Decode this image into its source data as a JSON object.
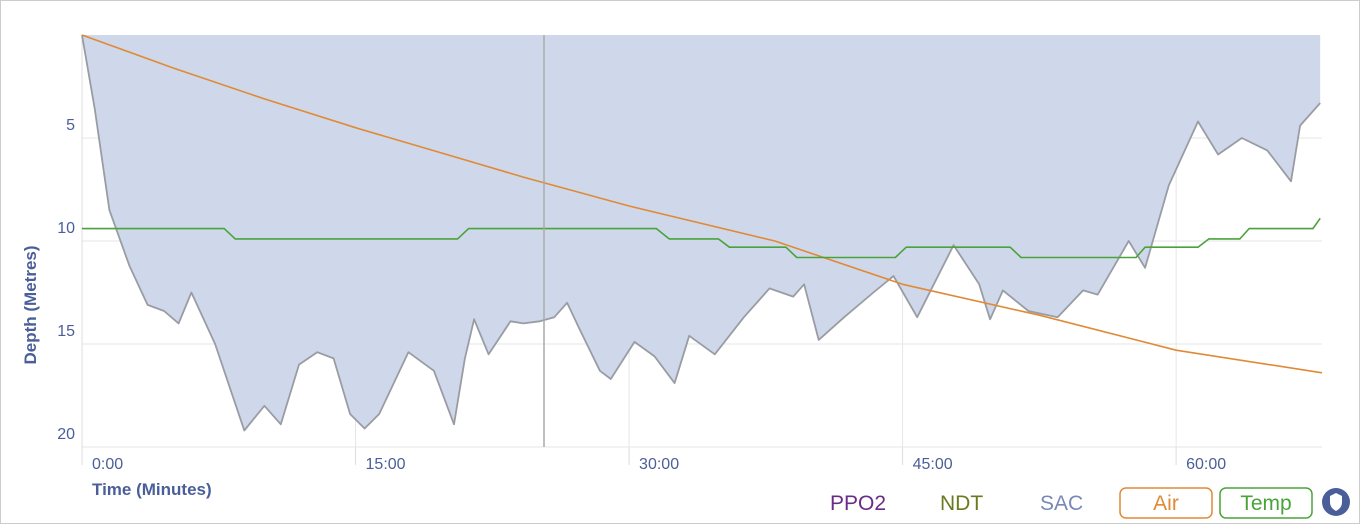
{
  "chart_data": {
    "type": "line",
    "xlabel": "Time (Minutes)",
    "ylabel": "Depth (Metres)",
    "xlim": [
      0,
      68
    ],
    "ylim": [
      0,
      20
    ],
    "y_reversed": true,
    "grid": true,
    "xticks": [
      {
        "value": 0,
        "label": "0:00"
      },
      {
        "value": 15,
        "label": "15:00"
      },
      {
        "value": 30,
        "label": "30:00"
      },
      {
        "value": 45,
        "label": "45:00"
      },
      {
        "value": 60,
        "label": "60:00"
      }
    ],
    "yticks": [
      5,
      10,
      15,
      20
    ],
    "series": [
      {
        "name": "Depth",
        "color": "#9a9ca4",
        "fill": "#ced8ea",
        "x": [
          0,
          0.7,
          1.5,
          2.6,
          3.6,
          4.5,
          5.3,
          6.0,
          7.3,
          8.9,
          10.0,
          10.9,
          11.9,
          12.9,
          13.8,
          14.7,
          15.5,
          16.3,
          17.9,
          19.3,
          20.4,
          21.0,
          21.5,
          22.3,
          23.5,
          24.2,
          25.1,
          25.9,
          26.6,
          27.3,
          28.4,
          29.0,
          30.3,
          31.4,
          32.5,
          33.3,
          34.7,
          36.3,
          37.7,
          39.0,
          39.6,
          40.4,
          41.8,
          43.4,
          44.5,
          45.8,
          47.8,
          49.2,
          49.8,
          50.5,
          51.9,
          53.5,
          54.9,
          55.7,
          57.4,
          58.3,
          59.6,
          61.2,
          62.3,
          63.6,
          65.0,
          66.3,
          66.8,
          67.9
        ],
        "values": [
          0,
          3.6,
          8.5,
          11.2,
          13.1,
          13.4,
          14.0,
          12.5,
          15.0,
          19.2,
          18.0,
          18.9,
          16.0,
          15.4,
          15.7,
          18.4,
          19.1,
          18.4,
          15.4,
          16.3,
          18.9,
          15.7,
          13.8,
          15.5,
          13.9,
          14.0,
          13.9,
          13.7,
          13.0,
          14.3,
          16.3,
          16.7,
          14.9,
          15.6,
          16.9,
          14.6,
          15.5,
          13.7,
          12.3,
          12.7,
          12.1,
          14.8,
          13.7,
          12.5,
          11.7,
          13.7,
          10.2,
          12.1,
          13.8,
          12.4,
          13.4,
          13.7,
          12.4,
          12.6,
          10.0,
          11.3,
          7.3,
          4.2,
          5.8,
          5.0,
          5.6,
          7.1,
          4.4,
          3.3
        ]
      },
      {
        "name": "Air",
        "color": "#e08a36",
        "x": [
          0,
          5,
          10,
          15,
          20,
          24.2,
          30,
          38,
          45,
          52.5,
          60,
          68
        ],
        "values": [
          0,
          1.6,
          3.1,
          4.5,
          5.8,
          6.9,
          8.3,
          10.0,
          12.1,
          13.6,
          15.3,
          16.4
        ]
      },
      {
        "name": "Temp",
        "color": "#4aa33a",
        "x": [
          0,
          7.8,
          8.4,
          20.6,
          21.2,
          31.5,
          32.2,
          34.9,
          35.5,
          38.6,
          39.2,
          44.6,
          45.2,
          50.9,
          51.5,
          57.8,
          58.3,
          61.2,
          61.8,
          63.5,
          64.0,
          67.5,
          67.9
        ],
        "values": [
          9.4,
          9.4,
          9.9,
          9.9,
          9.4,
          9.4,
          9.9,
          9.9,
          10.3,
          10.3,
          10.8,
          10.8,
          10.3,
          10.3,
          10.8,
          10.8,
          10.3,
          10.3,
          9.9,
          9.9,
          9.4,
          9.4,
          8.9
        ]
      }
    ],
    "legend": [
      {
        "name": "PPO2",
        "color": "#6a2a86",
        "boxed": false
      },
      {
        "name": "NDT",
        "color": "#6b7a22",
        "boxed": false
      },
      {
        "name": "SAC",
        "color": "#7a88b8",
        "boxed": false
      },
      {
        "name": "Air",
        "color": "#e08a36",
        "boxed": true
      },
      {
        "name": "Temp",
        "color": "#4aa33a",
        "boxed": true
      }
    ]
  }
}
